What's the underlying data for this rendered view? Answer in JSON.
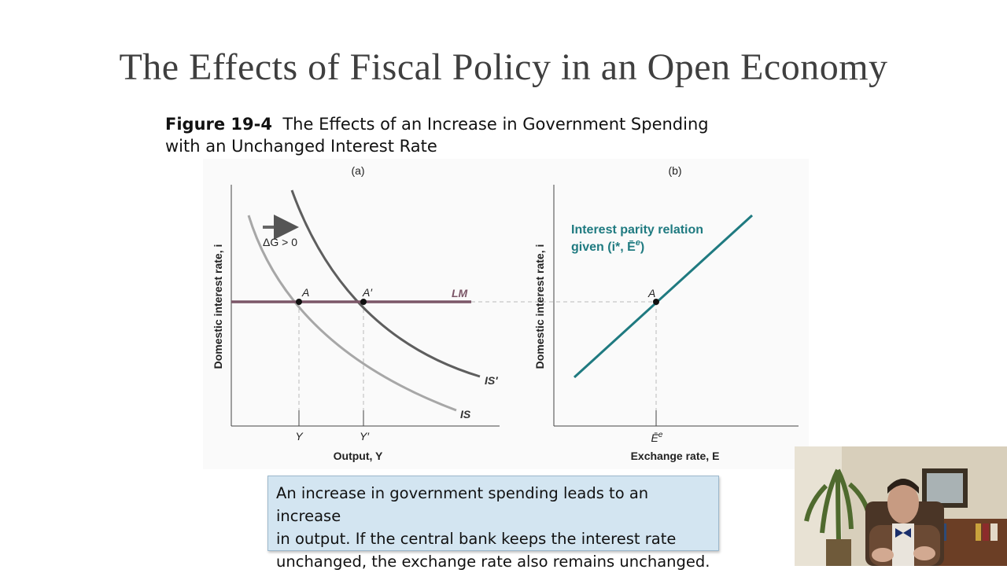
{
  "slide": {
    "title": "The Effects of Fiscal Policy in an Open Economy"
  },
  "figure": {
    "number": "Figure 19-4",
    "caption_line1": "The Effects of an Increase in Government Spending",
    "caption_line2": "with an Unchanged Interest Rate"
  },
  "panel_a": {
    "label": "(a)",
    "ylabel": "Domestic interest rate, i",
    "xlabel": "Output, Y",
    "shift_label": "ΔG > 0",
    "curves": {
      "lm": "LM",
      "is": "IS",
      "is_prime": "IS′"
    },
    "points": {
      "a": "A",
      "a_prime": "A′"
    },
    "ticks": {
      "y": "Y",
      "y_prime": "Y′"
    }
  },
  "panel_b": {
    "label": "(b)",
    "ylabel": "Domestic interest rate, i",
    "xlabel": "Exchange rate, E",
    "line_label_1": "Interest parity relation",
    "line_label_2": "given (i*, Ē",
    "line_label_2_sup": "e",
    "line_label_2_end": ")",
    "point": "A",
    "tick": "Ē",
    "tick_sup": "e"
  },
  "colors": {
    "lm": "#7b5667",
    "is": "#a7a7a7",
    "is_prime": "#5e5e5e",
    "parity": "#1f7a80",
    "parity_label": "#1f7a80",
    "note_bg": "#d3e5f1"
  },
  "note": {
    "line1": "An increase in government spending leads to an increase",
    "line2": "in output. If the central bank keeps the interest rate",
    "line3": "unchanged, the exchange rate also remains unchanged."
  },
  "webcam": {
    "icon": "presenter-video-icon"
  }
}
